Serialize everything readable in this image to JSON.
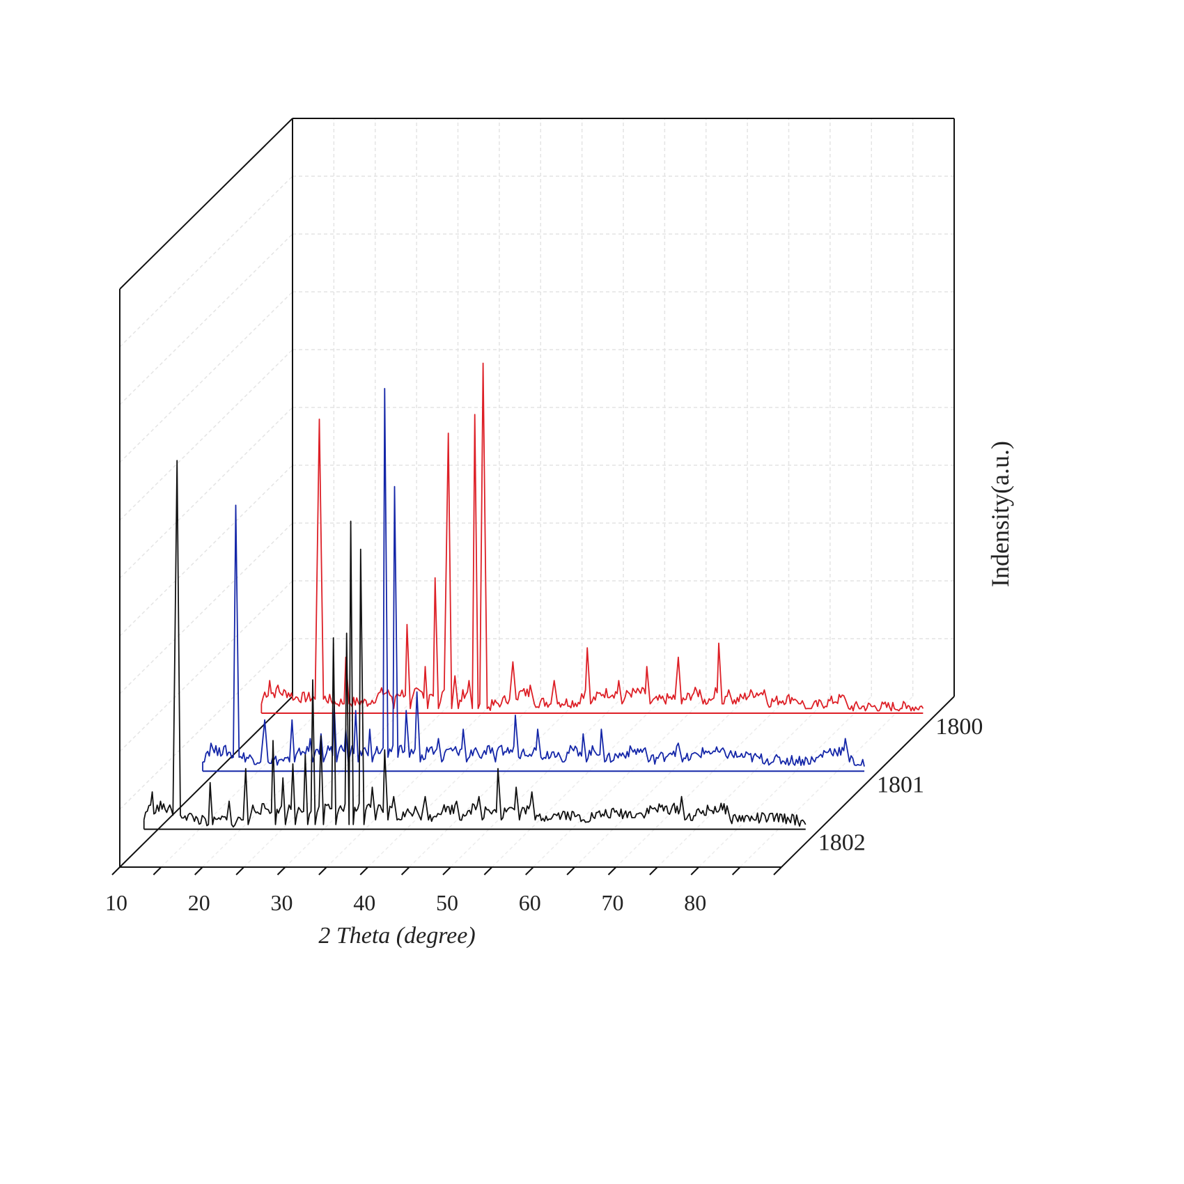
{
  "chart_data": {
    "type": "line",
    "style": "3d-waterfall",
    "title": "",
    "xlabel": "2 Theta (degree)",
    "ylabel": "Indensity(a.u.)",
    "xlim": [
      10,
      90
    ],
    "x_ticks": [
      10,
      20,
      30,
      40,
      50,
      60,
      70,
      80
    ],
    "y_units": "a.u.",
    "ylim": [
      0,
      100
    ],
    "grid": true,
    "legend": "none; series labels printed at right end of each trace",
    "series": [
      {
        "name": "1800",
        "color": "#dd1f26",
        "baseline": 3,
        "points": [
          [
            10,
            5
          ],
          [
            11,
            10
          ],
          [
            12,
            9
          ],
          [
            14,
            6
          ],
          [
            16.5,
            6
          ],
          [
            17.0,
            66
          ],
          [
            17.5,
            6
          ],
          [
            19,
            5
          ],
          [
            20,
            5
          ],
          [
            20.2,
            15
          ],
          [
            20.6,
            5
          ],
          [
            23,
            5
          ],
          [
            25.3,
            8
          ],
          [
            26,
            4
          ],
          [
            27.6,
            22
          ],
          [
            28,
            4
          ],
          [
            29.8,
            13
          ],
          [
            30.1,
            4
          ],
          [
            31.0,
            32
          ],
          [
            31.4,
            4
          ],
          [
            32.1,
            8
          ],
          [
            32.6,
            63
          ],
          [
            33.0,
            4
          ],
          [
            33.4,
            11
          ],
          [
            33.8,
            4
          ],
          [
            35.1,
            10
          ],
          [
            35.5,
            4
          ],
          [
            35.8,
            67
          ],
          [
            36.2,
            4
          ],
          [
            36.4,
            5
          ],
          [
            36.8,
            78
          ],
          [
            37.3,
            4
          ],
          [
            39,
            5
          ],
          [
            40.0,
            6
          ],
          [
            40.4,
            14
          ],
          [
            40.8,
            6
          ],
          [
            42.5,
            9
          ],
          [
            43,
            5
          ],
          [
            45.0,
            5
          ],
          [
            45.4,
            10
          ],
          [
            45.8,
            5
          ],
          [
            48.5,
            5
          ],
          [
            49.4,
            17
          ],
          [
            49.8,
            5
          ],
          [
            53.2,
            10
          ],
          [
            53.6,
            5
          ],
          [
            56.6,
            13
          ],
          [
            57.0,
            5
          ],
          [
            60.0,
            6
          ],
          [
            60.4,
            15
          ],
          [
            60.8,
            5
          ],
          [
            63.0,
            8
          ],
          [
            63.4,
            5
          ],
          [
            64.5,
            6
          ],
          [
            65.3,
            18
          ],
          [
            65.7,
            5
          ],
          [
            66.5,
            8
          ],
          [
            67,
            5
          ],
          [
            70.8,
            8
          ],
          [
            71.2,
            5
          ],
          [
            74.5,
            6
          ],
          [
            75.2,
            5
          ],
          [
            76.0,
            4
          ],
          [
            76.5,
            4
          ],
          [
            80.6,
            6
          ],
          [
            81,
            4
          ],
          [
            88,
            4
          ],
          [
            90,
            4
          ]
        ]
      },
      {
        "name": "1801",
        "color": "#1426a8",
        "baseline": 3,
        "points": [
          [
            10,
            5
          ],
          [
            11,
            9
          ],
          [
            12,
            8
          ],
          [
            13.7,
            6
          ],
          [
            14.0,
            60
          ],
          [
            14.4,
            6
          ],
          [
            17,
            5
          ],
          [
            17.5,
            14
          ],
          [
            17.9,
            5
          ],
          [
            20.5,
            5
          ],
          [
            20.8,
            14
          ],
          [
            21.1,
            5
          ],
          [
            23.0,
            10
          ],
          [
            23.3,
            5
          ],
          [
            24.3,
            11
          ],
          [
            24.6,
            5
          ],
          [
            25.9,
            17
          ],
          [
            26.2,
            5
          ],
          [
            27.3,
            12
          ],
          [
            27.6,
            5
          ],
          [
            28.5,
            16
          ],
          [
            28.8,
            5
          ],
          [
            30.2,
            12
          ],
          [
            30.5,
            5
          ],
          [
            32.0,
            85
          ],
          [
            32.4,
            6
          ],
          [
            33.2,
            64
          ],
          [
            33.6,
            6
          ],
          [
            34.6,
            16
          ],
          [
            35.0,
            6
          ],
          [
            35.9,
            20
          ],
          [
            36.3,
            5
          ],
          [
            37.5,
            8
          ],
          [
            38.5,
            10
          ],
          [
            38.9,
            5
          ],
          [
            41.5,
            12
          ],
          [
            41.9,
            5
          ],
          [
            43.0,
            8
          ],
          [
            43.5,
            6
          ],
          [
            45.0,
            8
          ],
          [
            45.4,
            5
          ],
          [
            47.8,
            15
          ],
          [
            48.2,
            6
          ],
          [
            50.5,
            12
          ],
          [
            50.9,
            6
          ],
          [
            53.0,
            7
          ],
          [
            53.5,
            5
          ],
          [
            56.0,
            11
          ],
          [
            56.4,
            5
          ],
          [
            58.2,
            12
          ],
          [
            58.6,
            5
          ],
          [
            63.5,
            8
          ],
          [
            63.9,
            5
          ],
          [
            66.0,
            6
          ],
          [
            67.5,
            9
          ],
          [
            68.0,
            5
          ],
          [
            71.0,
            7
          ],
          [
            74.6,
            6
          ],
          [
            79.0,
            5
          ],
          [
            84.0,
            5
          ],
          [
            87.7,
            10
          ],
          [
            88.2,
            5
          ],
          [
            90,
            4
          ]
        ]
      },
      {
        "name": "1802",
        "color": "#111111",
        "baseline": 3,
        "points": [
          [
            10,
            5
          ],
          [
            11,
            11
          ],
          [
            12,
            9
          ],
          [
            13.5,
            6
          ],
          [
            14.0,
            82
          ],
          [
            14.4,
            6
          ],
          [
            17.8,
            4
          ],
          [
            18.0,
            13
          ],
          [
            18.3,
            4
          ],
          [
            20.0,
            5
          ],
          [
            20.3,
            9
          ],
          [
            20.6,
            4
          ],
          [
            22.0,
            5
          ],
          [
            22.3,
            16
          ],
          [
            22.6,
            4
          ],
          [
            25.6,
            22
          ],
          [
            25.9,
            4
          ],
          [
            26.8,
            14
          ],
          [
            27.1,
            4
          ],
          [
            28.0,
            17
          ],
          [
            28.3,
            4
          ],
          [
            29.5,
            19
          ],
          [
            29.8,
            4
          ],
          [
            30.4,
            35
          ],
          [
            30.7,
            4
          ],
          [
            31.4,
            23
          ],
          [
            31.7,
            4
          ],
          [
            32.9,
            44
          ],
          [
            33.2,
            4
          ],
          [
            34.5,
            45
          ],
          [
            34.8,
            4
          ],
          [
            35.0,
            69
          ],
          [
            35.3,
            4
          ],
          [
            36.2,
            63
          ],
          [
            36.6,
            4
          ],
          [
            37.6,
            12
          ],
          [
            38.0,
            5
          ],
          [
            39.1,
            20
          ],
          [
            39.5,
            5
          ],
          [
            40.2,
            10
          ],
          [
            40.6,
            5
          ],
          [
            43.0,
            7
          ],
          [
            43.5,
            5
          ],
          [
            44.0,
            10
          ],
          [
            44.4,
            5
          ],
          [
            47.8,
            9
          ],
          [
            48.2,
            5
          ],
          [
            50.5,
            10
          ],
          [
            50.9,
            5
          ],
          [
            52.8,
            16
          ],
          [
            53.2,
            5
          ],
          [
            55.0,
            12
          ],
          [
            55.4,
            5
          ],
          [
            56.9,
            11
          ],
          [
            57.3,
            5
          ],
          [
            60.5,
            6
          ],
          [
            63.2,
            5
          ],
          [
            66.0,
            6
          ],
          [
            70.3,
            6
          ],
          [
            75.0,
            10
          ],
          [
            75.4,
            5
          ],
          [
            80.5,
            8
          ],
          [
            80.9,
            5
          ],
          [
            84.0,
            5
          ],
          [
            88.0,
            5
          ],
          [
            90,
            4
          ]
        ]
      }
    ]
  }
}
